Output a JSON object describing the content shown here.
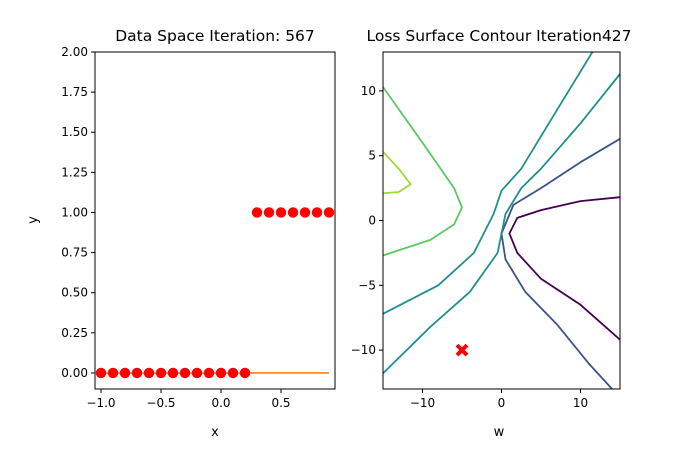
{
  "chart_data": [
    {
      "type": "scatter",
      "title": "Data Space Iteration: 567",
      "xlabel": "x",
      "ylabel": "y",
      "xlim": [
        -1.05,
        0.95
      ],
      "ylim": [
        -0.1,
        2.0
      ],
      "x_ticks": [
        -1.0,
        -0.5,
        0.0,
        0.5
      ],
      "x_tick_labels": [
        "−1.0",
        "−0.5",
        "0.0",
        "0.5"
      ],
      "y_ticks": [
        0.0,
        0.25,
        0.5,
        0.75,
        1.0,
        1.25,
        1.5,
        1.75,
        2.0
      ],
      "y_tick_labels": [
        "0.00",
        "0.25",
        "0.50",
        "0.75",
        "1.00",
        "1.25",
        "1.50",
        "1.75",
        "2.00"
      ],
      "grid": false,
      "colors": {
        "points": "#ff0000",
        "line": "#ff7f0e"
      },
      "series": [
        {
          "kind": "points",
          "x": [
            -1.0,
            -0.9,
            -0.8,
            -0.7,
            -0.6,
            -0.5,
            -0.4,
            -0.3,
            -0.2,
            -0.1,
            0.0,
            0.1,
            0.2,
            0.3,
            0.4,
            0.5,
            0.6,
            0.7,
            0.8,
            0.9
          ],
          "y": [
            0,
            0,
            0,
            0,
            0,
            0,
            0,
            0,
            0,
            0,
            0,
            0,
            0,
            1,
            1,
            1,
            1,
            1,
            1,
            1
          ]
        },
        {
          "kind": "line",
          "x": [
            -1.0,
            0.9
          ],
          "y": [
            0.0,
            0.0
          ]
        }
      ]
    },
    {
      "type": "contour",
      "title": "Loss Surface Contour Iteration427",
      "xlabel": "w",
      "ylabel": "",
      "xlim": [
        -15,
        15
      ],
      "ylim": [
        -13,
        13
      ],
      "x_ticks": [
        -10,
        0,
        10
      ],
      "x_tick_labels": [
        "−10",
        "0",
        "10"
      ],
      "y_ticks": [
        -10,
        -5,
        0,
        5,
        10
      ],
      "y_tick_labels": [
        "−10",
        "−5",
        "0",
        "5",
        "10"
      ],
      "grid": false,
      "marker": {
        "x": -5,
        "y": -10,
        "symbol": "X",
        "color": "#ff0000"
      },
      "contours": [
        {
          "color": "#440154",
          "points": [
            [
              15,
              1.8
            ],
            [
              10,
              1.5
            ],
            [
              5,
              0.8
            ],
            [
              2,
              0.2
            ],
            [
              1,
              -1
            ],
            [
              2,
              -2.5
            ],
            [
              5,
              -4.5
            ],
            [
              10,
              -6.5
            ],
            [
              15,
              -9.2
            ]
          ]
        },
        {
          "color": "#3b528b",
          "points": [
            [
              15,
              6.3
            ],
            [
              10,
              4.5
            ],
            [
              5,
              2.5
            ],
            [
              1.5,
              1.2
            ],
            [
              0,
              -1
            ],
            [
              0.5,
              -3
            ],
            [
              3,
              -5.5
            ],
            [
              7,
              -8
            ],
            [
              11,
              -11
            ],
            [
              14,
              -13
            ]
          ]
        },
        {
          "color": "#21908d",
          "points": [
            [
              15,
              11.3
            ],
            [
              10,
              7.5
            ],
            [
              5,
              4
            ],
            [
              2.5,
              2.5
            ],
            [
              0.5,
              0.5
            ],
            [
              -0.5,
              -2.5
            ],
            [
              -4,
              -5.5
            ],
            [
              -9,
              -8.2
            ],
            [
              -15,
              -11.8
            ]
          ]
        },
        {
          "color": "#21908d",
          "points": [
            [
              11.5,
              13
            ],
            [
              7,
              8.5
            ],
            [
              2.5,
              4
            ],
            [
              0,
              2.3
            ],
            [
              -1,
              0.5
            ],
            [
              -3.5,
              -2.5
            ],
            [
              -8,
              -5
            ],
            [
              -15,
              -7.2
            ]
          ]
        },
        {
          "color": "#5dc863",
          "points": [
            [
              -15,
              10.3
            ],
            [
              -10,
              6
            ],
            [
              -6,
              2.5
            ],
            [
              -5,
              1
            ],
            [
              -6,
              -0.3
            ],
            [
              -9,
              -1.5
            ],
            [
              -15,
              -2.7
            ]
          ]
        },
        {
          "color": "#a0da39",
          "points": [
            [
              -15,
              5.3
            ],
            [
              -13,
              4
            ],
            [
              -11.5,
              2.8
            ],
            [
              -13,
              2.2
            ],
            [
              -15,
              2.1
            ]
          ]
        }
      ]
    }
  ]
}
